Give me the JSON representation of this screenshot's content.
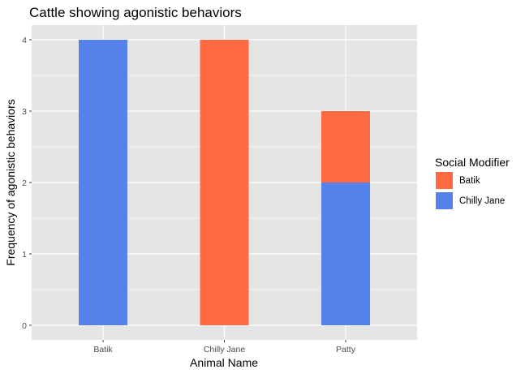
{
  "chart_data": {
    "type": "bar",
    "stacked": true,
    "title": "Cattle showing agonistic behaviors",
    "xlabel": "Animal Name",
    "ylabel": "Frequency of agonistic behaviors",
    "categories": [
      "Batik",
      "Chilly Jane",
      "Patty"
    ],
    "series": [
      {
        "name": "Chilly Jane",
        "values": [
          4,
          0,
          2
        ],
        "color": "#5581EB"
      },
      {
        "name": "Batik",
        "values": [
          0,
          4,
          1
        ],
        "color": "#FF6A43"
      }
    ],
    "ylim": [
      0,
      4
    ],
    "yticks": [
      "0",
      "1",
      "2",
      "3",
      "4"
    ],
    "grid": true,
    "legend": {
      "title": "Social Modifier",
      "position": "right",
      "entries": [
        {
          "label": "Batik",
          "color": "#FF6A43"
        },
        {
          "label": "Chilly Jane",
          "color": "#5581EB"
        }
      ]
    },
    "panel_background": "#E5E5E5",
    "gridline_color": "#FFFFFF"
  }
}
